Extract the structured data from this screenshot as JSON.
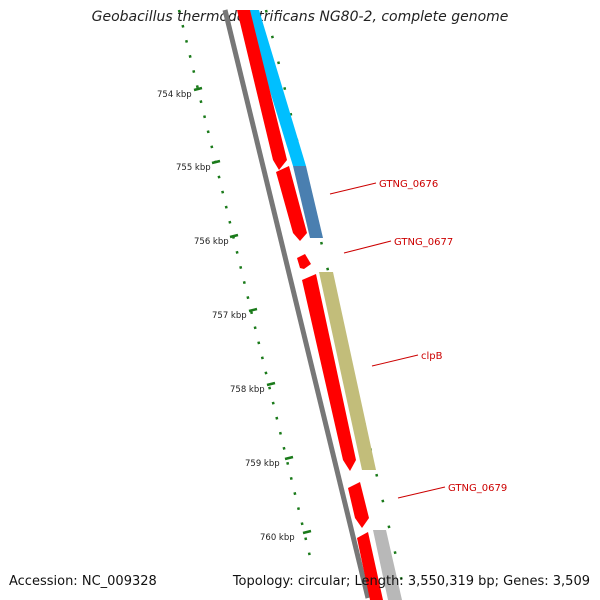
{
  "title": "Geobacillus thermodenitrificans NG80-2, complete genome",
  "footer": {
    "accession_label": "Accession:",
    "accession": "NC_009328",
    "topology_label": "Topology:",
    "topology": "circular",
    "length_label": "Length:",
    "length": "3,550,319 bp",
    "genes_label": "Genes:",
    "genes": "3,509"
  },
  "ruler_ticks": [
    {
      "label": "754 kbp"
    },
    {
      "label": "755 kbp"
    },
    {
      "label": "756 kbp"
    },
    {
      "label": "757 kbp"
    },
    {
      "label": "758 kbp"
    },
    {
      "label": "759 kbp"
    },
    {
      "label": "760 kbp"
    }
  ],
  "gene_labels": [
    {
      "name": "GTNG_0676",
      "color": "#cc0000"
    },
    {
      "name": "GTNG_0677",
      "color": "#cc0000"
    },
    {
      "name": "clpB",
      "color": "#cc0000"
    },
    {
      "name": "GTNG_0679",
      "color": "#cc0000"
    }
  ],
  "colors": {
    "cds": "#ff0000",
    "backbone": "#777777",
    "cog_cyan": "#00bfff",
    "cog_steel": "#4a7fb0",
    "cog_olive": "#c2bd7a",
    "cog_grey": "#b8b8b8",
    "ticks": "#1a7a1a",
    "label_line": "#cc0000"
  }
}
